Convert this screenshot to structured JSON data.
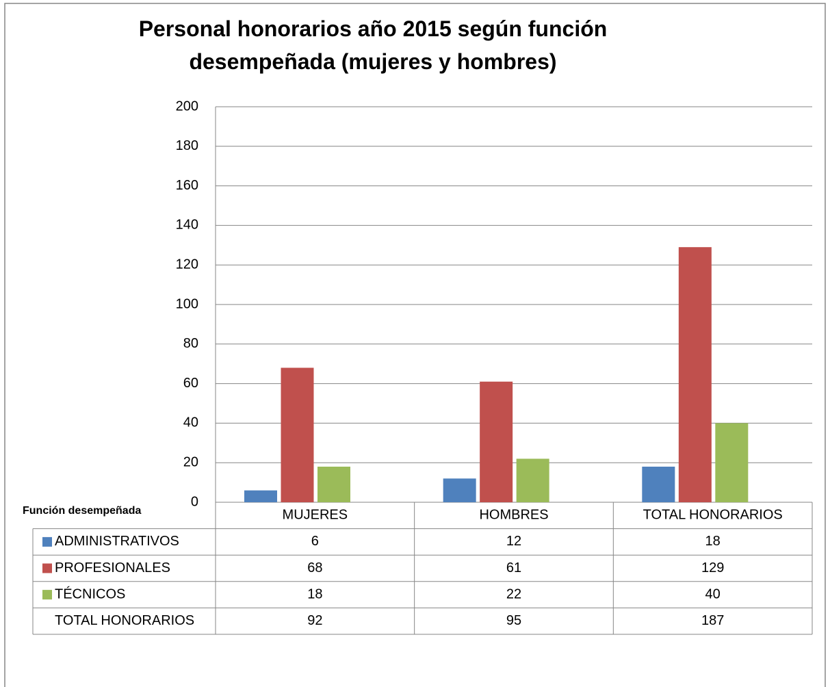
{
  "chart_data": {
    "type": "bar",
    "title": "Personal honorarios año 2015 según función desempeñada (mujeres y hombres)",
    "categories": [
      "MUJERES",
      "HOMBRES",
      "TOTAL HONORARIOS"
    ],
    "series": [
      {
        "name": "ADMINISTRATIVOS",
        "color": "#4f81bd",
        "values": [
          6,
          12,
          18
        ]
      },
      {
        "name": "PROFESIONALES",
        "color": "#c0504d",
        "values": [
          68,
          61,
          129
        ]
      },
      {
        "name": "TÉCNICOS",
        "color": "#9bbb59",
        "values": [
          18,
          22,
          40
        ]
      }
    ],
    "ylim": [
      0,
      200
    ],
    "yticks": [
      0,
      20,
      40,
      60,
      80,
      100,
      120,
      140,
      160,
      180,
      200
    ],
    "grid": true,
    "data_table": {
      "header": "Función desempeñada",
      "total_row": {
        "name": "TOTAL HONORARIOS",
        "values": [
          92,
          95,
          187
        ]
      }
    }
  }
}
